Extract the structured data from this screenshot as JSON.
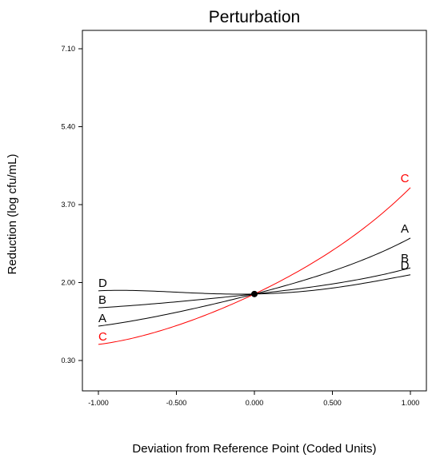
{
  "chart_data": {
    "type": "line",
    "title": "Perturbation",
    "xlabel": "Deviation from Reference Point (Coded Units)",
    "ylabel": "Reduction (log cfu/mL)",
    "xlim": [
      -1.0,
      1.0
    ],
    "ylim": [
      -0.2,
      7.6
    ],
    "x_ticks": [
      "-1.000",
      "-0.500",
      "0.000",
      "0.500",
      "1.000"
    ],
    "y_ticks": [
      "0.30",
      "2.00",
      "3.70",
      "5.40",
      "7.10"
    ],
    "grid": false,
    "colors": {
      "black": "#000000",
      "red": "#ff0000"
    },
    "reference_point": {
      "x": 0.0,
      "y": 1.75
    },
    "series": [
      {
        "name": "A",
        "color": "#000000",
        "x": [
          -1.0,
          -0.5,
          0.0,
          0.5,
          1.0
        ],
        "values": [
          1.05,
          1.35,
          1.75,
          2.25,
          2.97
        ]
      },
      {
        "name": "B",
        "color": "#000000",
        "x": [
          -1.0,
          -0.5,
          0.0,
          0.5,
          1.0
        ],
        "values": [
          1.45,
          1.58,
          1.75,
          1.97,
          2.32
        ]
      },
      {
        "name": "C",
        "color": "#ff0000",
        "x": [
          -1.0,
          -0.5,
          0.0,
          0.5,
          1.0
        ],
        "values": [
          0.65,
          1.06,
          1.75,
          2.7,
          4.07
        ]
      },
      {
        "name": "D",
        "color": "#000000",
        "x": [
          -1.0,
          -0.5,
          0.0,
          0.5,
          1.0
        ],
        "values": [
          1.82,
          1.79,
          1.75,
          1.88,
          2.17
        ]
      }
    ]
  }
}
